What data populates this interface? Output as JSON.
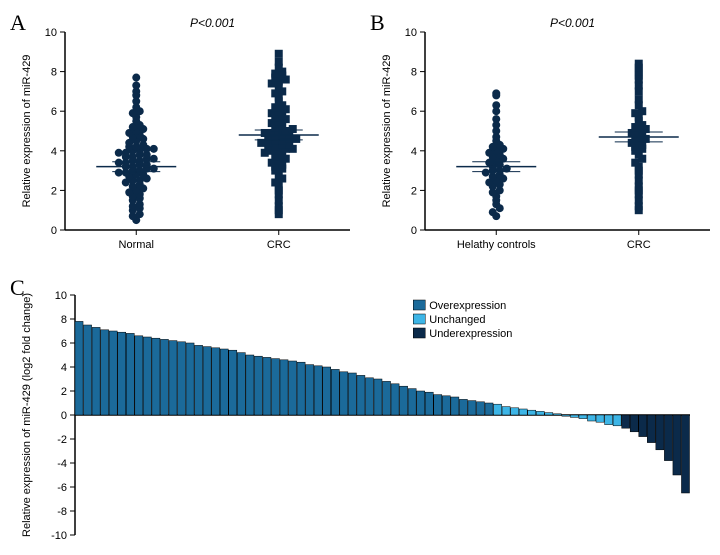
{
  "panelA": {
    "letter": "A",
    "pvalue": "P<0.001",
    "ylabel": "Relative expression of miR-429",
    "ylim": [
      0,
      10
    ],
    "ytick_step": 2,
    "groups": [
      "Normal",
      "CRC"
    ],
    "marker_size": 4,
    "marker_color": "#0b2a4a",
    "mean_line_color": "#0b2a4a",
    "series": [
      {
        "name": "Normal",
        "marker": "circle",
        "mean": 3.2,
        "err": 0.25,
        "points": [
          0.5,
          0.7,
          0.8,
          1.0,
          1.1,
          1.2,
          1.3,
          1.5,
          1.6,
          1.7,
          1.8,
          1.9,
          2.0,
          2.1,
          2.2,
          2.3,
          2.4,
          2.5,
          2.5,
          2.6,
          2.7,
          2.8,
          2.8,
          2.9,
          2.9,
          3.0,
          3.0,
          3.1,
          3.1,
          3.2,
          3.2,
          3.3,
          3.3,
          3.4,
          3.4,
          3.5,
          3.5,
          3.6,
          3.6,
          3.7,
          3.7,
          3.8,
          3.8,
          3.9,
          3.9,
          4.0,
          4.0,
          4.1,
          4.1,
          4.2,
          4.2,
          4.3,
          4.4,
          4.5,
          4.6,
          4.7,
          4.8,
          4.9,
          5.0,
          5.1,
          5.2,
          5.3,
          5.5,
          5.7,
          5.9,
          6.0,
          6.2,
          6.5,
          6.8,
          7.0,
          7.3,
          7.7
        ]
      },
      {
        "name": "CRC",
        "marker": "square",
        "mean": 4.8,
        "err": 0.25,
        "points": [
          0.8,
          1.0,
          1.2,
          1.5,
          1.8,
          2.0,
          2.2,
          2.4,
          2.6,
          2.8,
          3.0,
          3.1,
          3.2,
          3.3,
          3.4,
          3.5,
          3.6,
          3.7,
          3.8,
          3.9,
          4.0,
          4.0,
          4.1,
          4.1,
          4.2,
          4.2,
          4.3,
          4.3,
          4.4,
          4.4,
          4.5,
          4.5,
          4.6,
          4.6,
          4.7,
          4.7,
          4.8,
          4.8,
          4.9,
          4.9,
          5.0,
          5.0,
          5.1,
          5.2,
          5.3,
          5.4,
          5.5,
          5.6,
          5.7,
          5.8,
          5.9,
          6.0,
          6.1,
          6.2,
          6.3,
          6.5,
          6.7,
          6.9,
          7.0,
          7.2,
          7.4,
          7.5,
          7.6,
          7.7,
          7.8,
          7.9,
          8.0,
          8.2,
          8.5,
          8.9
        ]
      }
    ]
  },
  "panelB": {
    "letter": "B",
    "pvalue": "P<0.001",
    "ylabel": "Relative expression of miR-429",
    "ylim": [
      0,
      10
    ],
    "ytick_step": 2,
    "groups": [
      "Helathy controls",
      "CRC"
    ],
    "marker_size": 4,
    "marker_color": "#0b2a4a",
    "mean_line_color": "#0b2a4a",
    "series": [
      {
        "name": "Helathy controls",
        "marker": "circle",
        "mean": 3.2,
        "err": 0.25,
        "points": [
          0.7,
          0.9,
          1.1,
          1.3,
          1.5,
          1.7,
          1.9,
          2.0,
          2.2,
          2.3,
          2.4,
          2.5,
          2.6,
          2.7,
          2.8,
          2.9,
          3.0,
          3.0,
          3.1,
          3.2,
          3.3,
          3.4,
          3.5,
          3.6,
          3.7,
          3.8,
          3.9,
          4.0,
          4.1,
          4.2,
          4.3,
          4.5,
          4.7,
          5.0,
          5.3,
          5.6,
          6.0,
          6.3,
          6.8,
          6.9
        ]
      },
      {
        "name": "CRC",
        "marker": "square",
        "mean": 4.7,
        "err": 0.25,
        "points": [
          1.0,
          1.2,
          1.5,
          1.8,
          2.0,
          2.2,
          2.5,
          2.8,
          3.0,
          3.2,
          3.4,
          3.6,
          3.8,
          4.0,
          4.1,
          4.2,
          4.3,
          4.4,
          4.5,
          4.6,
          4.7,
          4.8,
          4.9,
          5.0,
          5.1,
          5.2,
          5.3,
          5.5,
          5.7,
          5.9,
          6.0,
          6.3,
          6.6,
          7.0,
          7.3,
          7.6,
          7.8,
          8.0,
          8.2,
          8.4
        ]
      }
    ]
  },
  "panelC": {
    "letter": "C",
    "ylabel": "Relative expression of miR-429 (log2 fold change)",
    "ylim": [
      -10,
      10
    ],
    "ytick_step": 2,
    "legend": {
      "items": [
        {
          "label": "Overexpression",
          "color": "#1b6a9a"
        },
        {
          "label": "Unchanged",
          "color": "#3db5e6"
        },
        {
          "label": "Underexpression",
          "color": "#0b2a4a"
        }
      ]
    },
    "bar_stroke": "#000000",
    "bars": [
      {
        "v": 7.8,
        "c": "#1b6a9a"
      },
      {
        "v": 7.5,
        "c": "#1b6a9a"
      },
      {
        "v": 7.3,
        "c": "#1b6a9a"
      },
      {
        "v": 7.1,
        "c": "#1b6a9a"
      },
      {
        "v": 7.0,
        "c": "#1b6a9a"
      },
      {
        "v": 6.9,
        "c": "#1b6a9a"
      },
      {
        "v": 6.8,
        "c": "#1b6a9a"
      },
      {
        "v": 6.6,
        "c": "#1b6a9a"
      },
      {
        "v": 6.5,
        "c": "#1b6a9a"
      },
      {
        "v": 6.4,
        "c": "#1b6a9a"
      },
      {
        "v": 6.3,
        "c": "#1b6a9a"
      },
      {
        "v": 6.2,
        "c": "#1b6a9a"
      },
      {
        "v": 6.1,
        "c": "#1b6a9a"
      },
      {
        "v": 6.0,
        "c": "#1b6a9a"
      },
      {
        "v": 5.8,
        "c": "#1b6a9a"
      },
      {
        "v": 5.7,
        "c": "#1b6a9a"
      },
      {
        "v": 5.6,
        "c": "#1b6a9a"
      },
      {
        "v": 5.5,
        "c": "#1b6a9a"
      },
      {
        "v": 5.4,
        "c": "#1b6a9a"
      },
      {
        "v": 5.2,
        "c": "#1b6a9a"
      },
      {
        "v": 5.0,
        "c": "#1b6a9a"
      },
      {
        "v": 4.9,
        "c": "#1b6a9a"
      },
      {
        "v": 4.8,
        "c": "#1b6a9a"
      },
      {
        "v": 4.7,
        "c": "#1b6a9a"
      },
      {
        "v": 4.6,
        "c": "#1b6a9a"
      },
      {
        "v": 4.5,
        "c": "#1b6a9a"
      },
      {
        "v": 4.4,
        "c": "#1b6a9a"
      },
      {
        "v": 4.2,
        "c": "#1b6a9a"
      },
      {
        "v": 4.1,
        "c": "#1b6a9a"
      },
      {
        "v": 4.0,
        "c": "#1b6a9a"
      },
      {
        "v": 3.8,
        "c": "#1b6a9a"
      },
      {
        "v": 3.6,
        "c": "#1b6a9a"
      },
      {
        "v": 3.5,
        "c": "#1b6a9a"
      },
      {
        "v": 3.3,
        "c": "#1b6a9a"
      },
      {
        "v": 3.1,
        "c": "#1b6a9a"
      },
      {
        "v": 3.0,
        "c": "#1b6a9a"
      },
      {
        "v": 2.8,
        "c": "#1b6a9a"
      },
      {
        "v": 2.6,
        "c": "#1b6a9a"
      },
      {
        "v": 2.4,
        "c": "#1b6a9a"
      },
      {
        "v": 2.2,
        "c": "#1b6a9a"
      },
      {
        "v": 2.0,
        "c": "#1b6a9a"
      },
      {
        "v": 1.9,
        "c": "#1b6a9a"
      },
      {
        "v": 1.7,
        "c": "#1b6a9a"
      },
      {
        "v": 1.6,
        "c": "#1b6a9a"
      },
      {
        "v": 1.5,
        "c": "#1b6a9a"
      },
      {
        "v": 1.3,
        "c": "#1b6a9a"
      },
      {
        "v": 1.2,
        "c": "#1b6a9a"
      },
      {
        "v": 1.1,
        "c": "#1b6a9a"
      },
      {
        "v": 1.0,
        "c": "#1b6a9a"
      },
      {
        "v": 0.9,
        "c": "#3db5e6"
      },
      {
        "v": 0.7,
        "c": "#3db5e6"
      },
      {
        "v": 0.6,
        "c": "#3db5e6"
      },
      {
        "v": 0.5,
        "c": "#3db5e6"
      },
      {
        "v": 0.4,
        "c": "#3db5e6"
      },
      {
        "v": 0.3,
        "c": "#3db5e6"
      },
      {
        "v": 0.2,
        "c": "#3db5e6"
      },
      {
        "v": 0.1,
        "c": "#3db5e6"
      },
      {
        "v": -0.1,
        "c": "#3db5e6"
      },
      {
        "v": -0.2,
        "c": "#3db5e6"
      },
      {
        "v": -0.3,
        "c": "#3db5e6"
      },
      {
        "v": -0.5,
        "c": "#3db5e6"
      },
      {
        "v": -0.6,
        "c": "#3db5e6"
      },
      {
        "v": -0.8,
        "c": "#3db5e6"
      },
      {
        "v": -0.9,
        "c": "#3db5e6"
      },
      {
        "v": -1.1,
        "c": "#0b2a4a"
      },
      {
        "v": -1.4,
        "c": "#0b2a4a"
      },
      {
        "v": -1.8,
        "c": "#0b2a4a"
      },
      {
        "v": -2.3,
        "c": "#0b2a4a"
      },
      {
        "v": -2.9,
        "c": "#0b2a4a"
      },
      {
        "v": -3.8,
        "c": "#0b2a4a"
      },
      {
        "v": -5.0,
        "c": "#0b2a4a"
      },
      {
        "v": -6.5,
        "c": "#0b2a4a"
      }
    ]
  }
}
